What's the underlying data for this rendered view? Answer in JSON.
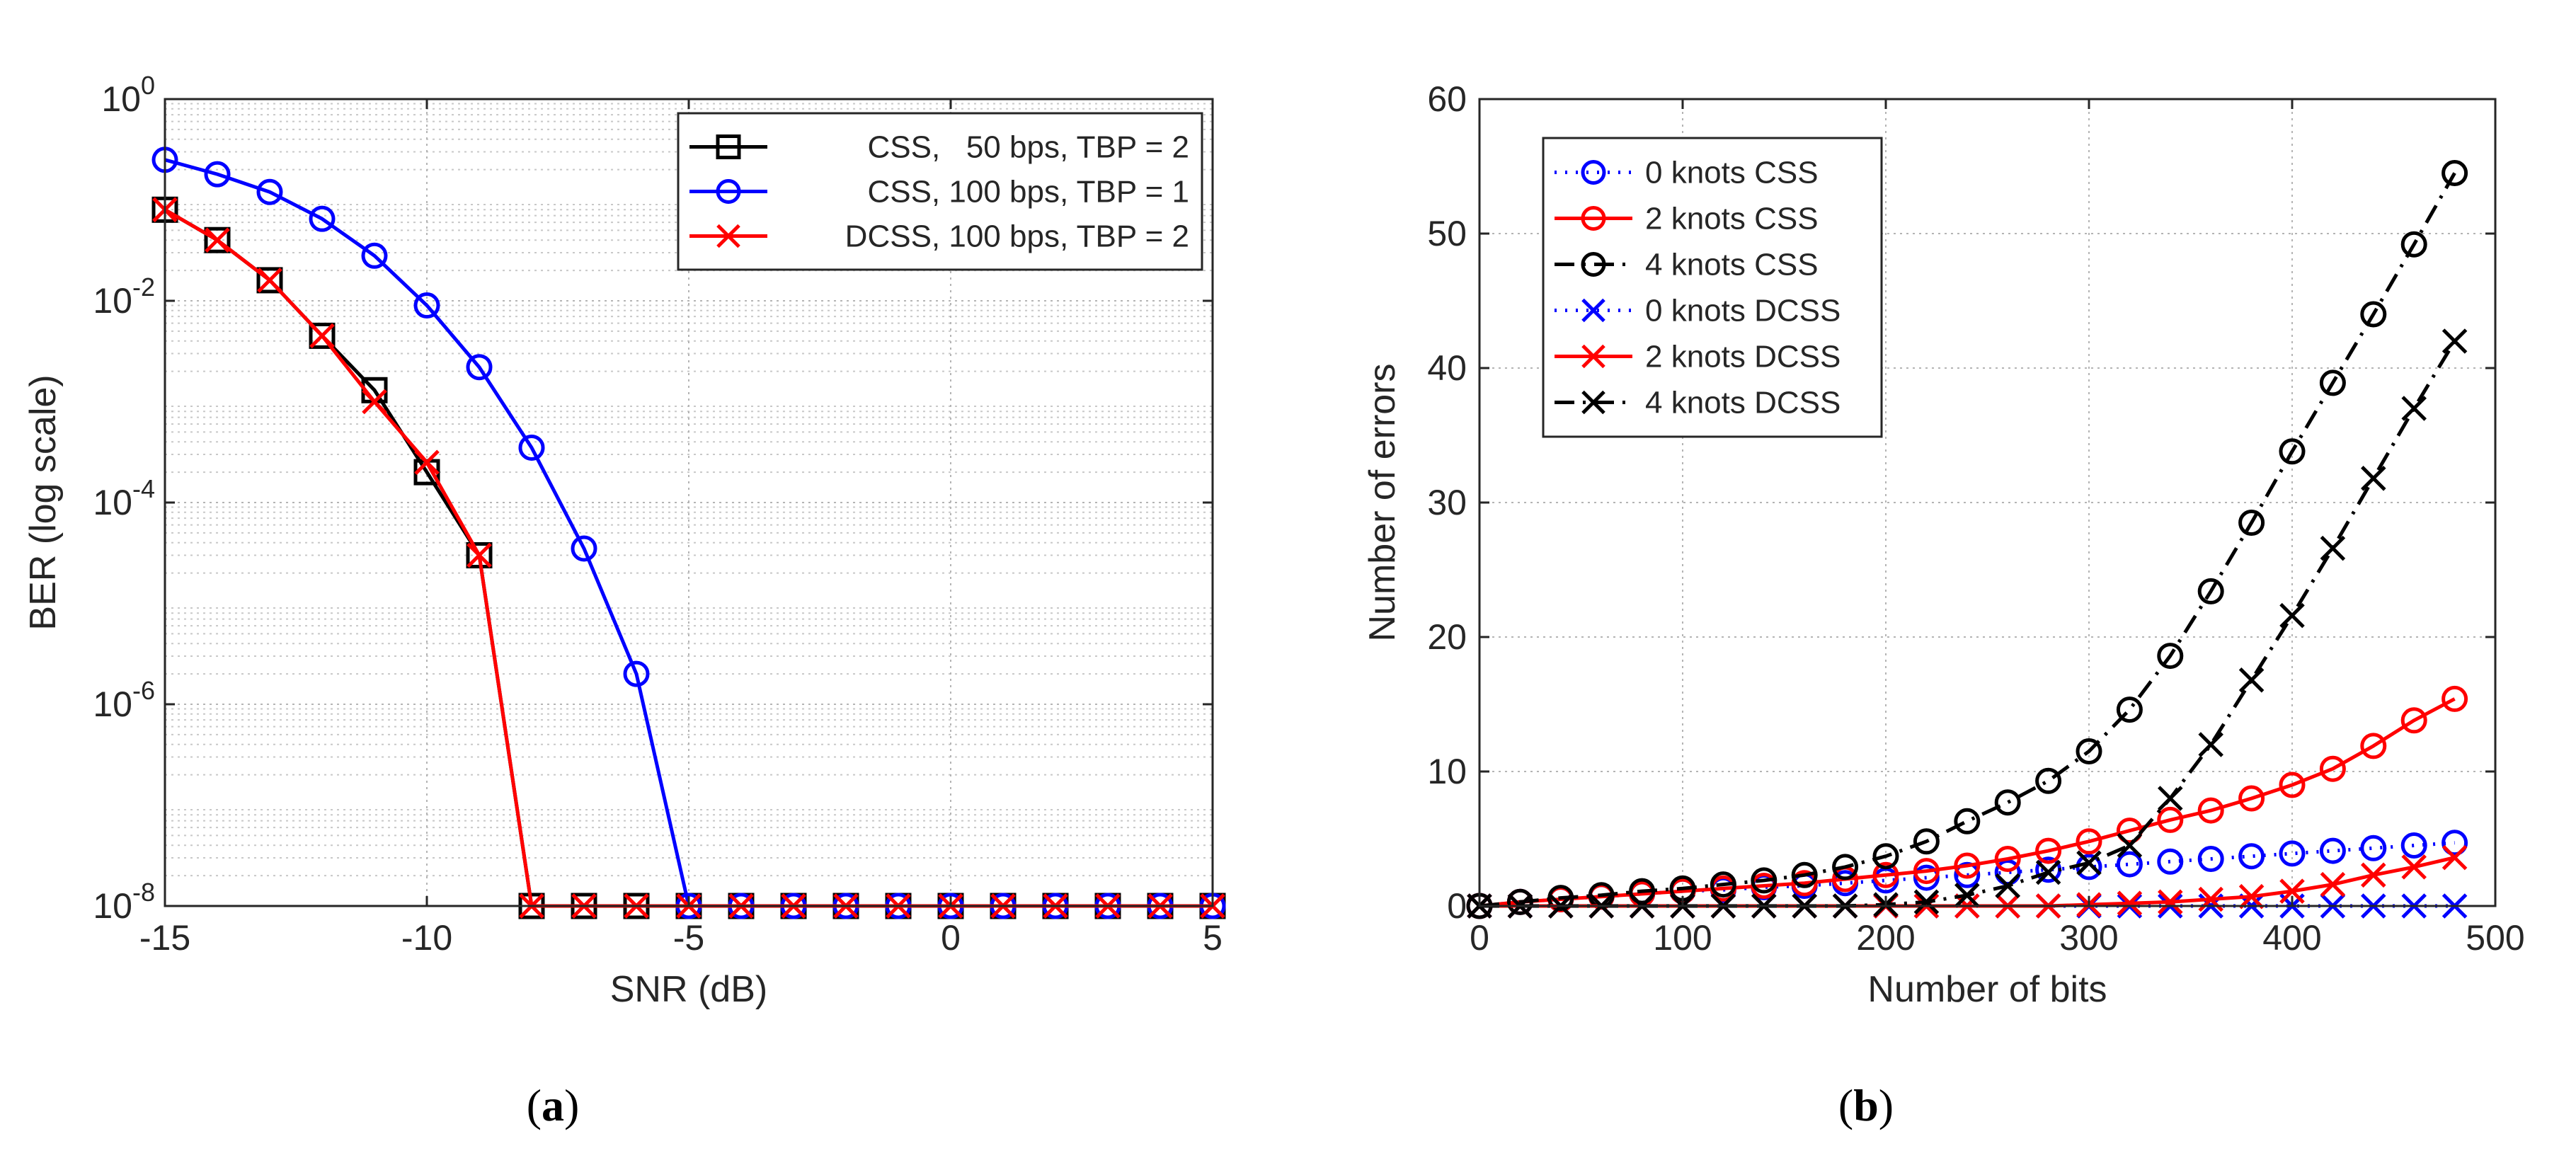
{
  "chart_data": [
    {
      "type": "line",
      "caption_letter": "a",
      "xlabel": "SNR (dB)",
      "ylabel": "BER (log scale)",
      "yscale": "log",
      "xlim": [
        -15,
        5
      ],
      "ylim": [
        1e-08,
        1
      ],
      "grid": true,
      "minor_grid": true,
      "legend_position": "top-right",
      "xticks": [
        -15,
        -10,
        -5,
        0,
        5
      ],
      "xtick_labels": [
        "-15",
        "-10",
        "-5",
        "0",
        "5"
      ],
      "yticks": [
        1e-08,
        1e-06,
        0.0001,
        0.01,
        1
      ],
      "ytick_labels": [
        {
          "base": "10",
          "exp": "-8"
        },
        {
          "base": "10",
          "exp": "-6"
        },
        {
          "base": "10",
          "exp": "-4"
        },
        {
          "base": "10",
          "exp": "-2"
        },
        {
          "base": "10",
          "exp": "0"
        }
      ],
      "series": [
        {
          "name": "CSS,   50 bps, TBP = 2",
          "color": "#000000",
          "marker": "square",
          "dash": "solid",
          "x": [
            -15,
            -14,
            -13,
            -12,
            -11,
            -10,
            -9,
            -8,
            -7,
            -6,
            -5,
            -4,
            -3,
            -2,
            -1,
            0,
            1,
            2,
            3,
            4,
            5
          ],
          "y": [
            0.08,
            0.04,
            0.016,
            0.0045,
            0.0013,
            0.0002,
            3e-05,
            1e-08,
            1e-08,
            1e-08,
            1e-08,
            1e-08,
            1e-08,
            1e-08,
            1e-08,
            1e-08,
            1e-08,
            1e-08,
            1e-08,
            1e-08,
            1e-08
          ]
        },
        {
          "name": "CSS, 100 bps, TBP = 1",
          "color": "#0000ff",
          "marker": "circle",
          "dash": "solid",
          "x": [
            -15,
            -14,
            -13,
            -12,
            -11,
            -10,
            -9,
            -8,
            -7,
            -6,
            -5,
            -4,
            -3,
            -2,
            -1,
            0,
            1,
            2,
            3,
            4,
            5
          ],
          "y": [
            0.25,
            0.18,
            0.12,
            0.065,
            0.028,
            0.009,
            0.0022,
            0.00035,
            3.5e-05,
            2e-06,
            1e-08,
            1e-08,
            1e-08,
            1e-08,
            1e-08,
            1e-08,
            1e-08,
            1e-08,
            1e-08,
            1e-08,
            1e-08
          ]
        },
        {
          "name": "DCSS, 100 bps, TBP = 2",
          "color": "#ff0000",
          "marker": "x",
          "dash": "solid",
          "x": [
            -15,
            -14,
            -13,
            -12,
            -11,
            -10,
            -9,
            -8,
            -7,
            -6,
            -5,
            -4,
            -3,
            -2,
            -1,
            0,
            1,
            2,
            3,
            4,
            5
          ],
          "y": [
            0.08,
            0.04,
            0.016,
            0.0045,
            0.001,
            0.00025,
            3e-05,
            1e-08,
            1e-08,
            1e-08,
            1e-08,
            1e-08,
            1e-08,
            1e-08,
            1e-08,
            1e-08,
            1e-08,
            1e-08,
            1e-08,
            1e-08,
            1e-08
          ]
        }
      ]
    },
    {
      "type": "line",
      "caption_letter": "b",
      "xlabel": "Number of bits",
      "ylabel": "Number of errors",
      "yscale": "linear",
      "xlim": [
        0,
        500
      ],
      "ylim": [
        0,
        60
      ],
      "grid": true,
      "minor_grid": false,
      "legend_position": "top-left",
      "xticks": [
        0,
        100,
        200,
        300,
        400,
        500
      ],
      "xtick_labels": [
        "0",
        "100",
        "200",
        "300",
        "400",
        "500"
      ],
      "yticks": [
        0,
        10,
        20,
        30,
        40,
        50,
        60
      ],
      "ytick_labels": [
        "0",
        "10",
        "20",
        "30",
        "40",
        "50",
        "60"
      ],
      "series": [
        {
          "name": "0 knots CSS",
          "color": "#0000ff",
          "marker": "circle",
          "dash": "dotted",
          "x": [
            0,
            20,
            40,
            60,
            80,
            100,
            120,
            140,
            160,
            180,
            200,
            220,
            240,
            260,
            280,
            300,
            320,
            340,
            360,
            380,
            400,
            420,
            440,
            460,
            480
          ],
          "y": [
            0,
            0.3,
            0.5,
            0.7,
            0.9,
            1.1,
            1.2,
            1.4,
            1.5,
            1.7,
            1.9,
            2.1,
            2.3,
            2.5,
            2.7,
            2.9,
            3.1,
            3.3,
            3.5,
            3.7,
            3.9,
            4.1,
            4.3,
            4.5,
            4.7
          ]
        },
        {
          "name": "2 knots CSS",
          "color": "#ff0000",
          "marker": "circle",
          "dash": "solid",
          "x": [
            0,
            20,
            40,
            60,
            80,
            100,
            120,
            140,
            160,
            180,
            200,
            220,
            240,
            260,
            280,
            300,
            320,
            340,
            360,
            380,
            400,
            420,
            440,
            460,
            480
          ],
          "y": [
            0,
            0.3,
            0.5,
            0.7,
            0.9,
            1.1,
            1.3,
            1.5,
            1.7,
            2.0,
            2.3,
            2.6,
            3.0,
            3.5,
            4.1,
            4.8,
            5.6,
            6.4,
            7.1,
            8.0,
            9.0,
            10.2,
            11.9,
            13.8,
            15.4
          ]
        },
        {
          "name": "4 knots CSS",
          "color": "#000000",
          "marker": "circle",
          "dash": "dashdot",
          "x": [
            0,
            20,
            40,
            60,
            80,
            100,
            120,
            140,
            160,
            180,
            200,
            220,
            240,
            260,
            280,
            300,
            320,
            340,
            360,
            380,
            400,
            420,
            440,
            460,
            480
          ],
          "y": [
            0,
            0.3,
            0.6,
            0.8,
            1.1,
            1.3,
            1.6,
            1.9,
            2.3,
            2.9,
            3.7,
            4.8,
            6.3,
            7.7,
            9.3,
            11.5,
            14.6,
            18.6,
            23.4,
            28.5,
            33.8,
            38.9,
            44.0,
            49.2,
            54.5
          ]
        },
        {
          "name": "0 knots DCSS",
          "color": "#0000ff",
          "marker": "x",
          "dash": "dotted",
          "x": [
            0,
            20,
            40,
            60,
            80,
            100,
            120,
            140,
            160,
            180,
            200,
            220,
            240,
            260,
            280,
            300,
            320,
            340,
            360,
            380,
            400,
            420,
            440,
            460,
            480
          ],
          "y": [
            0,
            0,
            0,
            0,
            0,
            0,
            0,
            0,
            0,
            0,
            0,
            0,
            0,
            0,
            0,
            0,
            0,
            0,
            0,
            0,
            0,
            0,
            0,
            0,
            0
          ]
        },
        {
          "name": "2 knots DCSS",
          "color": "#ff0000",
          "marker": "x",
          "dash": "solid",
          "x": [
            0,
            20,
            40,
            60,
            80,
            100,
            120,
            140,
            160,
            180,
            200,
            220,
            240,
            260,
            280,
            300,
            320,
            340,
            360,
            380,
            400,
            420,
            440,
            460,
            480
          ],
          "y": [
            0,
            0,
            0,
            0,
            0,
            0,
            0,
            0,
            0,
            0,
            0,
            0,
            0,
            0,
            0,
            0.1,
            0.2,
            0.3,
            0.5,
            0.7,
            1.1,
            1.6,
            2.3,
            2.9,
            3.6
          ]
        },
        {
          "name": "4 knots DCSS",
          "color": "#000000",
          "marker": "x",
          "dash": "dashdot",
          "x": [
            0,
            20,
            40,
            60,
            80,
            100,
            120,
            140,
            160,
            180,
            200,
            220,
            240,
            260,
            280,
            300,
            320,
            340,
            360,
            380,
            400,
            420,
            440,
            460,
            480
          ],
          "y": [
            0,
            0,
            0,
            0,
            0,
            0,
            0,
            0,
            0,
            0,
            0.1,
            0.3,
            0.8,
            1.5,
            2.5,
            3.2,
            4.5,
            8.0,
            12.0,
            16.8,
            21.6,
            26.6,
            31.8,
            37.0,
            42.0
          ]
        }
      ]
    }
  ]
}
